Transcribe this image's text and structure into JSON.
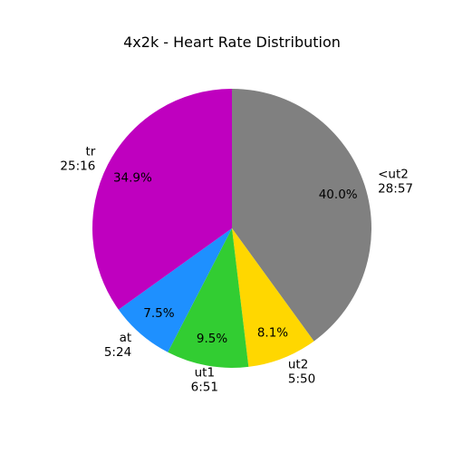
{
  "chart_data": {
    "type": "pie",
    "title": "4x2k  - Heart Rate Distribution",
    "start_angle_deg": 90,
    "direction": "clockwise",
    "slices": [
      {
        "label": "<ut2",
        "time": "28:57",
        "percent": 40.0,
        "pct_text": "40.0%",
        "color": "#808080"
      },
      {
        "label": "ut2",
        "time": "5:50",
        "percent": 8.1,
        "pct_text": "8.1%",
        "color": "#FFD700"
      },
      {
        "label": "ut1",
        "time": "6:51",
        "percent": 9.5,
        "pct_text": "9.5%",
        "color": "#32CD32"
      },
      {
        "label": "at",
        "time": "5:24",
        "percent": 7.5,
        "pct_text": "7.5%",
        "color": "#1E90FF"
      },
      {
        "label": "tr",
        "time": "25:16",
        "percent": 34.9,
        "pct_text": "34.9%",
        "color": "#BF00BF"
      }
    ]
  }
}
